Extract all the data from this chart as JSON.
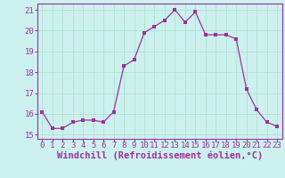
{
  "x": [
    0,
    1,
    2,
    3,
    4,
    5,
    6,
    7,
    8,
    9,
    10,
    11,
    12,
    13,
    14,
    15,
    16,
    17,
    18,
    19,
    20,
    21,
    22,
    23
  ],
  "y": [
    16.1,
    15.3,
    15.3,
    15.6,
    15.7,
    15.7,
    15.6,
    16.1,
    18.3,
    18.6,
    19.9,
    20.2,
    20.5,
    21.0,
    20.4,
    20.9,
    19.8,
    19.8,
    19.8,
    19.6,
    17.2,
    16.2,
    15.6,
    15.4
  ],
  "line_color": "#993399",
  "marker_color": "#993399",
  "bg_color": "#ccf0ee",
  "grid_color": "#aaddcc",
  "xlabel": "Windchill (Refroidissement éolien,°C)",
  "ylim": [
    14.8,
    21.3
  ],
  "xlim": [
    -0.5,
    23.5
  ],
  "yticks": [
    15,
    16,
    17,
    18,
    19,
    20,
    21
  ],
  "xtick_labels": [
    "0",
    "1",
    "2",
    "3",
    "4",
    "5",
    "6",
    "7",
    "8",
    "9",
    "10",
    "11",
    "12",
    "13",
    "14",
    "15",
    "16",
    "17",
    "18",
    "19",
    "20",
    "21",
    "22",
    "23"
  ],
  "label_color": "#993399",
  "tick_color": "#993399",
  "font_size": 6.5,
  "xlabel_fontsize": 7.5
}
